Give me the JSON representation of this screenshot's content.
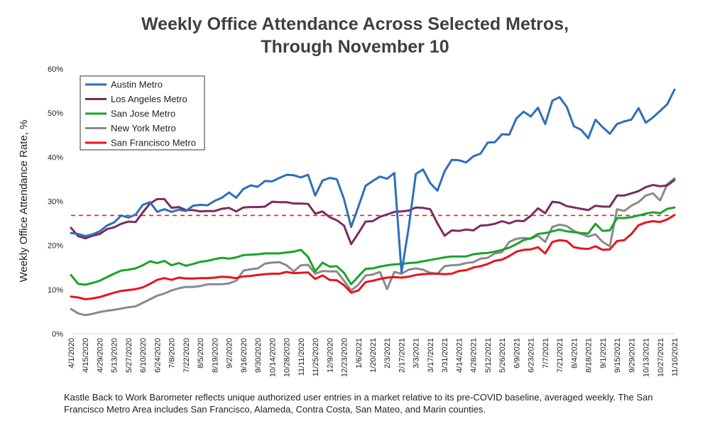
{
  "chart_data": {
    "type": "line",
    "title_line1": "Weekly Office Attendance Across Selected Metros,",
    "title_line2": "Through November 10",
    "ylabel": "Weekly Office Attendance  Rate, %",
    "xlabel": "",
    "ylim": [
      0,
      60
    ],
    "yticks": [
      0,
      10,
      20,
      30,
      40,
      50,
      60
    ],
    "ytick_labels": [
      "0%",
      "10%",
      "20%",
      "30%",
      "40%",
      "50%",
      "60%"
    ],
    "x_tick_labels": [
      "4/1/2020",
      "4/15/2020",
      "4/29/2020",
      "5/13/2020",
      "5/27/2020",
      "6/10/2020",
      "6/24/2020",
      "7/8/2020",
      "7/22/2020",
      "8/5/2020",
      "8/19/2020",
      "9/2/2020",
      "9/16/2020",
      "9/30/2020",
      "10/14/2020",
      "10/28/2020",
      "11/11/2020",
      "11/25/2020",
      "12/9/2020",
      "12/23/2020",
      "1/6/2021",
      "1/20/2021",
      "2/3/2021",
      "2/17/2021",
      "3/3/2021",
      "3/17/2021",
      "3/31/2021",
      "4/14/2021",
      "4/28/2021",
      "5/12/2021",
      "5/26/2021",
      "6/9/2021",
      "6/23/2021",
      "7/7/2021",
      "7/21/2021",
      "8/4/2021",
      "8/18/2021",
      "9/1/2021",
      "9/15/2021",
      "9/29/2021",
      "10/13/2021",
      "10/27/2021",
      "11/10/2021"
    ],
    "grid": false,
    "legend_position": "top-left",
    "reference_line": {
      "value": 26.8,
      "color": "#e02020",
      "style": "dashed"
    },
    "series": [
      {
        "name": "Austin Metro",
        "color": "#2e6fba",
        "values": [
          22.8,
          22.6,
          22.1,
          22.5,
          23.2,
          24.5,
          25.2,
          26.8,
          26.3,
          27.0,
          29.2,
          29.8,
          27.6,
          28.2,
          27.6,
          28.1,
          27.8,
          29.0,
          29.2,
          29.1,
          30.1,
          30.8,
          32.0,
          30.8,
          32.8,
          33.6,
          33.3,
          34.6,
          34.5,
          35.3,
          36.0,
          35.9,
          35.4,
          36.0,
          31.3,
          34.7,
          35.3,
          35.0,
          30.5,
          24.2,
          28.8,
          33.5,
          34.6,
          35.6,
          35.1,
          36.4,
          13.9,
          24.0,
          36.2,
          37.2,
          34.1,
          32.4,
          36.8,
          39.4,
          39.3,
          38.8,
          40.2,
          40.8,
          43.3,
          43.4,
          45.2,
          45.1,
          48.8,
          50.3,
          49.2,
          51.2,
          47.5,
          52.8,
          53.6,
          51.4,
          47.0,
          46.2,
          44.3,
          48.5,
          46.8,
          45.3,
          47.5,
          48.1,
          48.5,
          51.1,
          47.8,
          49.0,
          50.5,
          52.0,
          55.3
        ]
      },
      {
        "name": "Los Angeles Metro",
        "color": "#7b2d5e",
        "values": [
          24.0,
          22.1,
          21.6,
          22.2,
          22.6,
          23.7,
          24.1,
          24.9,
          25.4,
          25.3,
          27.5,
          29.5,
          30.5,
          30.5,
          28.5,
          28.7,
          28.0,
          28.0,
          27.7,
          27.8,
          27.8,
          28.3,
          28.5,
          27.7,
          28.6,
          28.7,
          28.7,
          28.8,
          29.9,
          29.8,
          29.8,
          29.5,
          29.5,
          29.4,
          27.2,
          27.7,
          26.4,
          25.7,
          24.5,
          20.3,
          22.8,
          25.4,
          25.5,
          26.5,
          27.0,
          27.6,
          27.7,
          27.9,
          28.6,
          28.5,
          28.2,
          25.0,
          22.2,
          23.4,
          23.3,
          23.6,
          23.4,
          24.5,
          24.6,
          24.9,
          25.5,
          25.0,
          25.6,
          25.5,
          26.7,
          28.4,
          27.3,
          29.9,
          29.7,
          28.9,
          28.6,
          28.3,
          28.0,
          29.0,
          28.8,
          28.8,
          31.3,
          31.3,
          31.8,
          32.3,
          33.2,
          33.7,
          33.4,
          33.6,
          34.8
        ]
      },
      {
        "name": "San Jose Metro",
        "color": "#1aa32a",
        "values": [
          13.3,
          11.3,
          11.1,
          11.5,
          12.0,
          12.8,
          13.6,
          14.3,
          14.5,
          14.8,
          15.5,
          16.4,
          16.0,
          16.5,
          15.5,
          16.0,
          15.4,
          15.8,
          16.3,
          16.5,
          16.9,
          17.2,
          17.0,
          17.3,
          17.8,
          17.9,
          18.0,
          18.2,
          18.2,
          18.2,
          18.4,
          18.6,
          19.0,
          17.4,
          14.1,
          16.1,
          15.2,
          15.3,
          13.8,
          11.2,
          13.0,
          14.7,
          14.8,
          15.2,
          15.5,
          15.7,
          15.8,
          16.0,
          16.1,
          16.4,
          16.7,
          17.0,
          17.3,
          17.5,
          17.5,
          17.5,
          18.0,
          18.2,
          18.3,
          18.6,
          19.0,
          19.5,
          20.3,
          21.2,
          21.6,
          22.6,
          22.8,
          23.2,
          23.6,
          23.2,
          23.0,
          22.8,
          22.7,
          24.9,
          23.3,
          23.4,
          26.2,
          26.2,
          26.4,
          26.8,
          27.2,
          27.5,
          27.3,
          28.3,
          28.6
        ]
      },
      {
        "name": "New York Metro",
        "color": "#8a8a8a",
        "values": [
          5.6,
          4.6,
          4.2,
          4.5,
          4.9,
          5.2,
          5.4,
          5.7,
          6.0,
          6.2,
          7.0,
          7.8,
          8.6,
          9.1,
          9.8,
          10.3,
          10.6,
          10.6,
          10.8,
          11.2,
          11.2,
          11.2,
          11.4,
          12.0,
          14.3,
          14.6,
          14.8,
          15.9,
          16.1,
          16.2,
          15.5,
          14.1,
          15.5,
          15.6,
          13.6,
          14.2,
          14.1,
          14.1,
          12.0,
          9.8,
          11.1,
          13.2,
          13.4,
          14.0,
          10.1,
          14.0,
          13.6,
          14.5,
          14.8,
          14.5,
          13.8,
          13.6,
          15.3,
          15.5,
          15.6,
          16.0,
          16.2,
          17.0,
          17.2,
          18.2,
          18.5,
          20.8,
          21.5,
          21.7,
          21.5,
          22.2,
          20.8,
          24.2,
          24.7,
          24.4,
          23.3,
          22.6,
          22.0,
          22.5,
          20.8,
          19.8,
          28.2,
          27.8,
          29.0,
          29.8,
          31.3,
          31.8,
          30.2,
          33.9,
          35.2
        ]
      },
      {
        "name": "San Francisco Metro",
        "color": "#e8141c",
        "values": [
          8.4,
          8.2,
          7.8,
          8.0,
          8.3,
          8.8,
          9.3,
          9.7,
          9.9,
          10.1,
          10.5,
          11.3,
          12.2,
          12.6,
          12.2,
          12.7,
          12.5,
          12.5,
          12.6,
          12.6,
          12.7,
          12.9,
          12.8,
          12.6,
          13.0,
          13.1,
          13.3,
          13.5,
          13.6,
          13.6,
          14.0,
          13.7,
          13.8,
          13.9,
          12.4,
          13.2,
          12.2,
          12.1,
          11.0,
          9.3,
          9.8,
          11.7,
          12.0,
          12.4,
          12.7,
          12.8,
          12.7,
          12.9,
          13.3,
          13.5,
          13.6,
          13.6,
          13.5,
          13.6,
          14.2,
          14.4,
          15.0,
          15.3,
          15.8,
          16.5,
          16.8,
          17.6,
          18.6,
          19.0,
          19.1,
          19.6,
          18.2,
          20.8,
          21.2,
          21.0,
          19.6,
          19.3,
          19.2,
          19.8,
          19.0,
          19.1,
          21.0,
          21.2,
          22.6,
          24.6,
          25.2,
          25.5,
          25.3,
          25.9,
          26.9
        ]
      }
    ]
  },
  "footnote": "Kastle Back to Work Barometer reflects unique authorized user entries in a market relative to its pre-COVID baseline, averaged weekly. The San Francisco Metro Area includes San Francisco, Alameda, Contra Costa, San Mateo, and Marin counties."
}
